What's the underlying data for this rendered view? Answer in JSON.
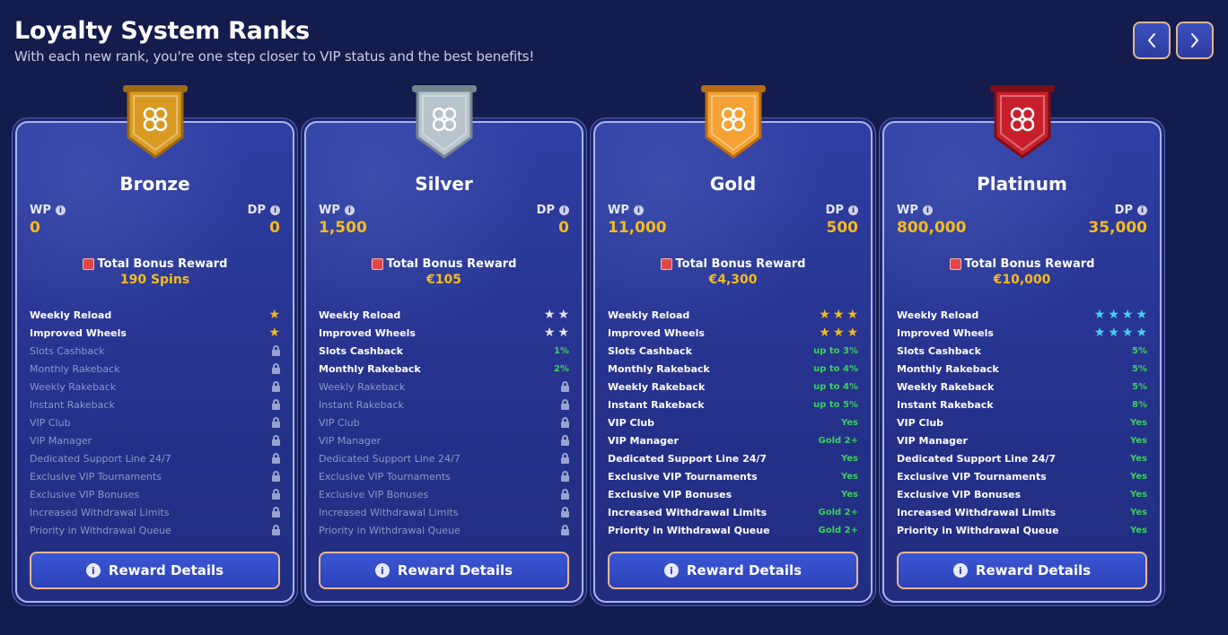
{
  "header": {
    "title": "Loyalty System Ranks",
    "subtitle": "With each new rank, you're one step closer to VIP status and the best benefits!"
  },
  "nav": {
    "prev_icon": "chevron-left-icon",
    "next_icon": "chevron-right-icon"
  },
  "labels": {
    "wp": "WP",
    "dp": "DP",
    "total_bonus": "Total Bonus Reward",
    "reward_button": "Reward Details"
  },
  "benefit_names": [
    "Weekly Reload",
    "Improved Wheels",
    "Slots Cashback",
    "Monthly Rakeback",
    "Weekly Rakeback",
    "Instant Rakeback",
    "VIP Club",
    "VIP Manager",
    "Dedicated Support Line 24/7",
    "Exclusive VIP Tournaments",
    "Exclusive VIP Bonuses",
    "Increased Withdrawal Limits",
    "Priority in Withdrawal Queue"
  ],
  "ranks": [
    {
      "name": "Bronze",
      "wp": "0",
      "dp": "0",
      "bonus": "190 Spins",
      "badge_color": "#d99a22",
      "badge_dark": "#9c6a12",
      "star_color": "#f5bb1f",
      "benefits": [
        {
          "stars": 1
        },
        {
          "stars": 1
        },
        {
          "locked": true
        },
        {
          "locked": true
        },
        {
          "locked": true
        },
        {
          "locked": true
        },
        {
          "locked": true
        },
        {
          "locked": true
        },
        {
          "locked": true
        },
        {
          "locked": true
        },
        {
          "locked": true
        },
        {
          "locked": true
        },
        {
          "locked": true
        }
      ]
    },
    {
      "name": "Silver",
      "wp": "1,500",
      "dp": "0",
      "bonus": "€105",
      "badge_color": "#b7c4cc",
      "badge_dark": "#75858f",
      "star_color": "#e6e8f6",
      "benefits": [
        {
          "stars": 2
        },
        {
          "stars": 2
        },
        {
          "value": "1%"
        },
        {
          "value": "2%"
        },
        {
          "locked": true
        },
        {
          "locked": true
        },
        {
          "locked": true
        },
        {
          "locked": true
        },
        {
          "locked": true
        },
        {
          "locked": true
        },
        {
          "locked": true
        },
        {
          "locked": true
        },
        {
          "locked": true
        }
      ]
    },
    {
      "name": "Gold",
      "wp": "11,000",
      "dp": "500",
      "bonus": "€4,300",
      "badge_color": "#f3a233",
      "badge_dark": "#b86b14",
      "star_color": "#f5bb1f",
      "benefits": [
        {
          "stars": 3
        },
        {
          "stars": 3
        },
        {
          "value": "up to 3%"
        },
        {
          "value": "up to 4%"
        },
        {
          "value": "up to 4%"
        },
        {
          "value": "up to 5%"
        },
        {
          "value": "Yes"
        },
        {
          "value": "Gold 2+"
        },
        {
          "value": "Yes"
        },
        {
          "value": "Yes"
        },
        {
          "value": "Yes"
        },
        {
          "value": "Gold 2+"
        },
        {
          "value": "Gold 2+"
        }
      ]
    },
    {
      "name": "Platinum",
      "wp": "800,000",
      "dp": "35,000",
      "bonus": "€10,000",
      "badge_color": "#c7202c",
      "badge_dark": "#7d0f18",
      "star_color": "#3fd6f0",
      "benefits": [
        {
          "stars": 4
        },
        {
          "stars": 4
        },
        {
          "value": "5%"
        },
        {
          "value": "5%"
        },
        {
          "value": "5%"
        },
        {
          "value": "8%"
        },
        {
          "value": "Yes"
        },
        {
          "value": "Yes"
        },
        {
          "value": "Yes"
        },
        {
          "value": "Yes"
        },
        {
          "value": "Yes"
        },
        {
          "value": "Yes"
        },
        {
          "value": "Yes"
        }
      ]
    }
  ]
}
